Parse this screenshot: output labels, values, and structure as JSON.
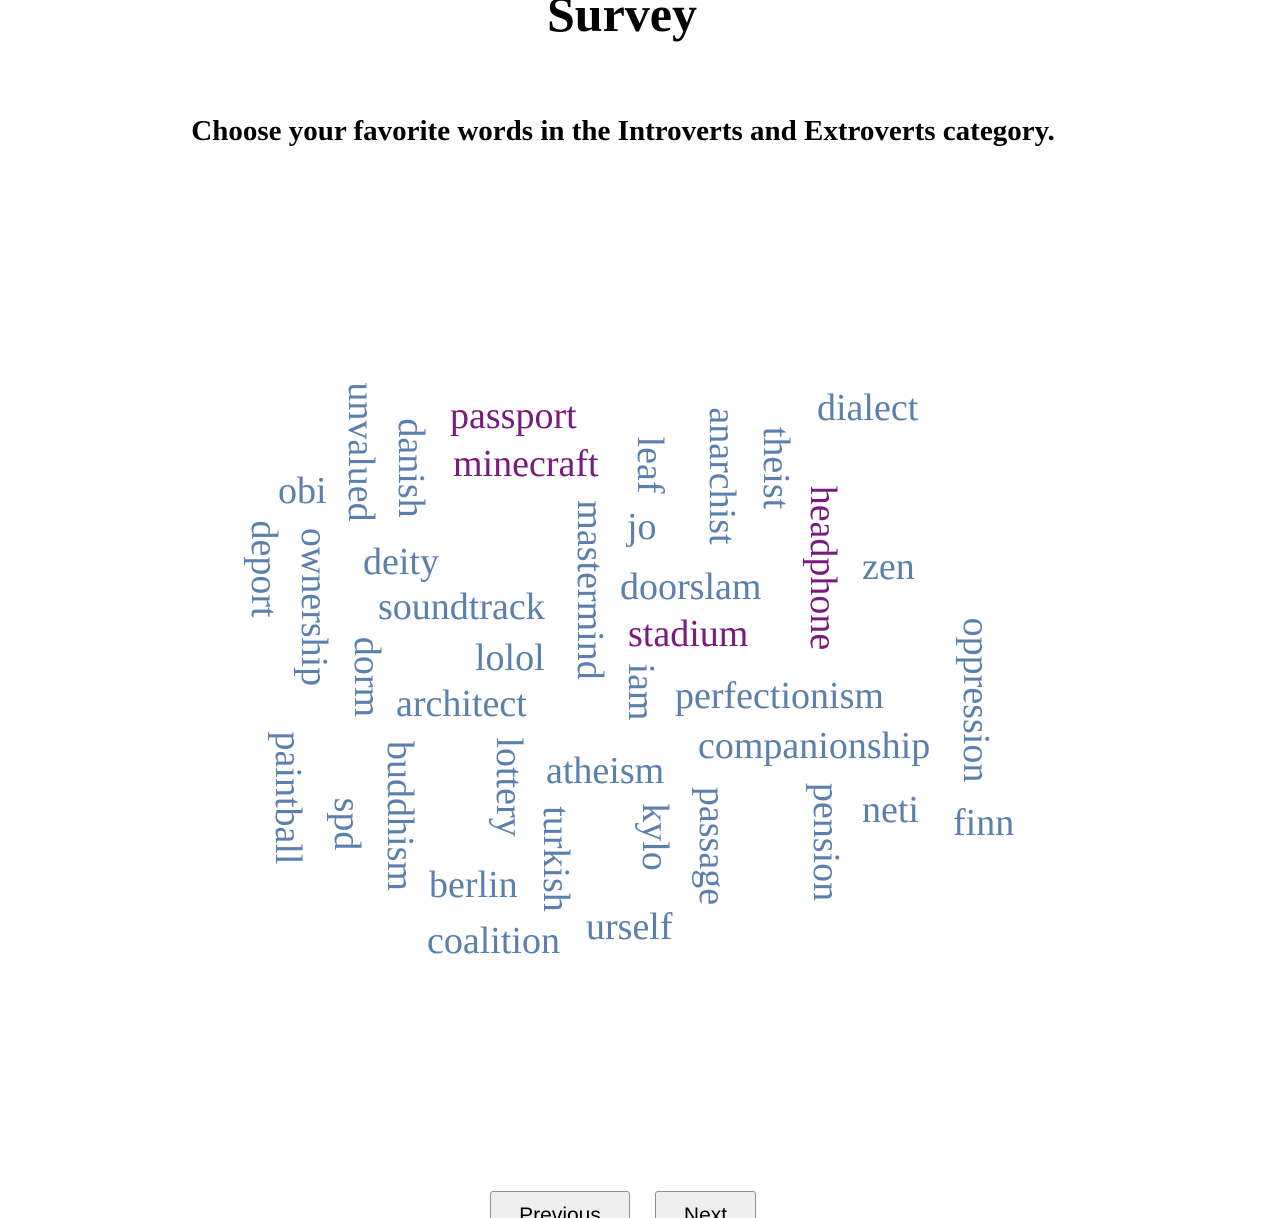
{
  "survey": {
    "title": "Survey",
    "prompt": "Choose your favorite words in the Introverts and Extroverts category."
  },
  "colors": {
    "word_default": "#5b80ad",
    "word_selected": "#7a1a7e"
  },
  "words": [
    {
      "text": "passport",
      "selected": true
    },
    {
      "text": "minecraft",
      "selected": true
    },
    {
      "text": "dialect",
      "selected": false
    },
    {
      "text": "obi",
      "selected": false
    },
    {
      "text": "deity",
      "selected": false
    },
    {
      "text": "soundtrack",
      "selected": false
    },
    {
      "text": "lolol",
      "selected": false
    },
    {
      "text": "architect",
      "selected": false
    },
    {
      "text": "doorslam",
      "selected": false
    },
    {
      "text": "stadium",
      "selected": true
    },
    {
      "text": "zen",
      "selected": false
    },
    {
      "text": "perfectionism",
      "selected": false
    },
    {
      "text": "companionship",
      "selected": false
    },
    {
      "text": "atheism",
      "selected": false
    },
    {
      "text": "neti",
      "selected": false
    },
    {
      "text": "finn",
      "selected": false
    },
    {
      "text": "berlin",
      "selected": false
    },
    {
      "text": "coalition",
      "selected": false
    },
    {
      "text": "urself",
      "selected": false
    },
    {
      "text": "jo",
      "selected": false
    },
    {
      "text": "unvalued",
      "selected": false
    },
    {
      "text": "danish",
      "selected": false
    },
    {
      "text": "leaf",
      "selected": false
    },
    {
      "text": "anarchist",
      "selected": false
    },
    {
      "text": "theist",
      "selected": false
    },
    {
      "text": "headphone",
      "selected": true
    },
    {
      "text": "deport",
      "selected": false
    },
    {
      "text": "ownership",
      "selected": false
    },
    {
      "text": "mastermind",
      "selected": false
    },
    {
      "text": "dorm",
      "selected": false
    },
    {
      "text": "iam",
      "selected": false
    },
    {
      "text": "oppression",
      "selected": false
    },
    {
      "text": "paintball",
      "selected": false
    },
    {
      "text": "buddhism",
      "selected": false
    },
    {
      "text": "lottery",
      "selected": false
    },
    {
      "text": "spd",
      "selected": false
    },
    {
      "text": "turkish",
      "selected": false
    },
    {
      "text": "kylo",
      "selected": false
    },
    {
      "text": "passage",
      "selected": false
    },
    {
      "text": "pension",
      "selected": false
    }
  ],
  "navigation": {
    "previous_label": "Previous",
    "next_label": "Next"
  }
}
